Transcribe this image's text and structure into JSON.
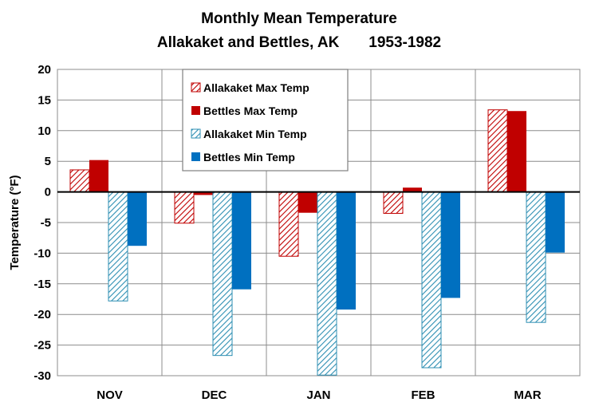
{
  "chart_data": {
    "type": "bar",
    "title_line1": "Monthly Mean Temperature",
    "title_line2": "Allakaket and Bettles, AK       1953-1982",
    "xlabel": "",
    "ylabel": "Temperature (°F)",
    "ylim": [
      -30,
      20
    ],
    "yticks": [
      20,
      15,
      10,
      5,
      0,
      -5,
      -10,
      -15,
      -20,
      -25,
      -30
    ],
    "categories": [
      "NOV",
      "DEC",
      "JAN",
      "FEB",
      "MAR"
    ],
    "legend_position": "top-left",
    "grid": true,
    "series": [
      {
        "name": "Allakaket Max Temp",
        "style": "hatch",
        "color": "#c00000",
        "values": [
          3.6,
          -5.1,
          -10.5,
          -3.5,
          13.4
        ]
      },
      {
        "name": "Bettles Max Temp",
        "style": "solid",
        "color": "#c00000",
        "values": [
          5.2,
          -0.5,
          -3.4,
          0.7,
          13.2
        ]
      },
      {
        "name": "Allakaket Min Temp",
        "style": "hatch",
        "color": "#2e8fb3",
        "values": [
          -17.8,
          -26.7,
          -29.9,
          -28.7,
          -21.3
        ]
      },
      {
        "name": "Bettles Min Temp",
        "style": "solid",
        "color": "#0070c0",
        "values": [
          -8.8,
          -15.9,
          -19.2,
          -17.3,
          -9.9
        ]
      }
    ]
  }
}
